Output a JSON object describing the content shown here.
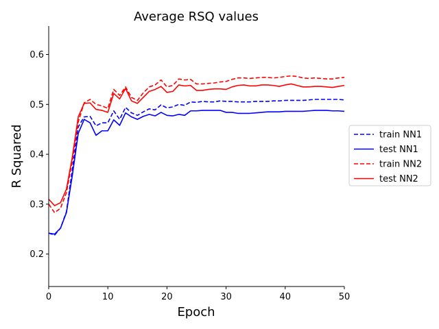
{
  "chart_data": {
    "type": "line",
    "title": "Average RSQ values",
    "xlabel": "Epoch",
    "ylabel": "R Squared",
    "xlim": [
      0,
      50
    ],
    "ylim": [
      0.135,
      0.657
    ],
    "xticks": [
      "0",
      "10",
      "20",
      "30",
      "40",
      "50"
    ],
    "yticks": [
      "0.2",
      "0.3",
      "0.4",
      "0.5",
      "0.6"
    ],
    "grid": false,
    "legend_position": "center-right",
    "x": [
      0,
      1,
      2,
      3,
      4,
      5,
      6,
      7,
      8,
      9,
      10,
      11,
      12,
      13,
      14,
      15,
      16,
      17,
      18,
      19,
      20,
      21,
      22,
      23,
      24,
      25,
      26,
      27,
      28,
      29,
      30,
      31,
      32,
      33,
      34,
      35,
      36,
      37,
      38,
      39,
      40,
      41,
      42,
      43,
      44,
      45,
      46,
      47,
      48,
      49,
      50
    ],
    "series": [
      {
        "name": "train NN1",
        "color": "#0000ff",
        "dash": "dashed",
        "values": [
          0.242,
          0.238,
          0.252,
          0.285,
          0.37,
          0.455,
          0.475,
          0.476,
          0.457,
          0.463,
          0.463,
          0.487,
          0.47,
          0.494,
          0.483,
          0.478,
          0.485,
          0.491,
          0.489,
          0.499,
          0.493,
          0.495,
          0.5,
          0.498,
          0.505,
          0.504,
          0.506,
          0.505,
          0.505,
          0.507,
          0.506,
          0.506,
          0.505,
          0.505,
          0.505,
          0.506,
          0.506,
          0.506,
          0.507,
          0.507,
          0.508,
          0.508,
          0.508,
          0.508,
          0.509,
          0.51,
          0.51,
          0.51,
          0.51,
          0.51,
          0.509
        ]
      },
      {
        "name": "test NN1",
        "color": "#0000ff",
        "dash": "solid",
        "values": [
          0.242,
          0.24,
          0.252,
          0.283,
          0.358,
          0.442,
          0.47,
          0.463,
          0.438,
          0.447,
          0.447,
          0.469,
          0.458,
          0.483,
          0.475,
          0.47,
          0.476,
          0.48,
          0.477,
          0.484,
          0.478,
          0.477,
          0.48,
          0.478,
          0.487,
          0.487,
          0.488,
          0.488,
          0.488,
          0.488,
          0.484,
          0.484,
          0.482,
          0.482,
          0.482,
          0.483,
          0.484,
          0.485,
          0.485,
          0.485,
          0.486,
          0.486,
          0.486,
          0.486,
          0.487,
          0.488,
          0.488,
          0.488,
          0.487,
          0.487,
          0.486
        ]
      },
      {
        "name": "train NN2",
        "color": "#ff0000",
        "dash": "dashed",
        "values": [
          0.3,
          0.283,
          0.292,
          0.323,
          0.387,
          0.465,
          0.503,
          0.51,
          0.5,
          0.497,
          0.492,
          0.53,
          0.518,
          0.535,
          0.514,
          0.508,
          0.523,
          0.535,
          0.539,
          0.549,
          0.535,
          0.538,
          0.551,
          0.549,
          0.55,
          0.541,
          0.541,
          0.542,
          0.543,
          0.545,
          0.546,
          0.55,
          0.553,
          0.553,
          0.552,
          0.553,
          0.554,
          0.554,
          0.553,
          0.554,
          0.556,
          0.557,
          0.556,
          0.553,
          0.552,
          0.553,
          0.552,
          0.551,
          0.551,
          0.553,
          0.554
        ]
      },
      {
        "name": "test NN2",
        "color": "#ff0000",
        "dash": "solid",
        "values": [
          0.31,
          0.297,
          0.303,
          0.33,
          0.395,
          0.475,
          0.502,
          0.503,
          0.49,
          0.488,
          0.484,
          0.522,
          0.511,
          0.532,
          0.507,
          0.502,
          0.514,
          0.526,
          0.53,
          0.536,
          0.524,
          0.526,
          0.539,
          0.537,
          0.538,
          0.528,
          0.528,
          0.53,
          0.531,
          0.531,
          0.53,
          0.535,
          0.538,
          0.539,
          0.537,
          0.537,
          0.539,
          0.539,
          0.538,
          0.536,
          0.539,
          0.541,
          0.538,
          0.535,
          0.535,
          0.536,
          0.536,
          0.535,
          0.534,
          0.536,
          0.538
        ]
      }
    ]
  }
}
